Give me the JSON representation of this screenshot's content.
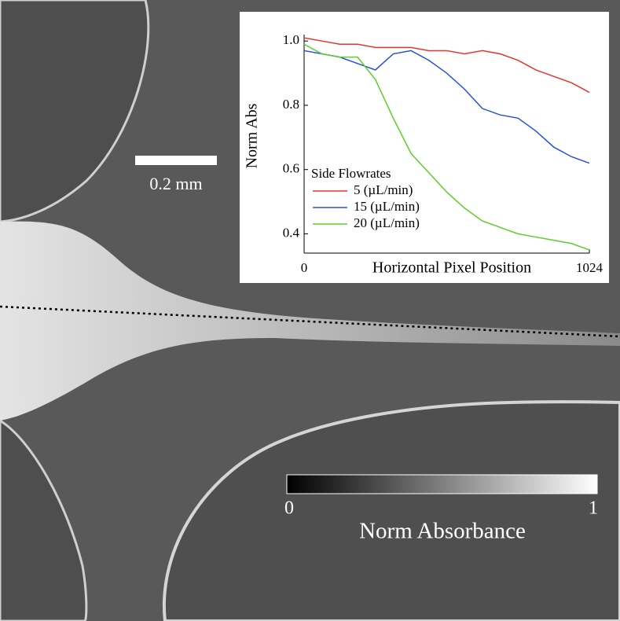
{
  "scale_bar": {
    "label": "0.2 mm"
  },
  "colorbar": {
    "label": "Norm Absorbance",
    "ticks": [
      0,
      1
    ]
  },
  "chart_data": {
    "type": "line",
    "x_label": "Horizontal Pixel Position",
    "y_label": "Norm Abs",
    "legend_title": "Side Flowrates",
    "x": [
      0,
      64,
      128,
      192,
      256,
      320,
      384,
      448,
      512,
      576,
      640,
      704,
      768,
      832,
      896,
      960,
      1024
    ],
    "series": [
      {
        "name": "5 (µL/min)",
        "color": "#e8352b",
        "values": [
          1.01,
          1.0,
          0.99,
          0.99,
          0.98,
          0.98,
          0.98,
          0.97,
          0.97,
          0.96,
          0.97,
          0.96,
          0.94,
          0.91,
          0.89,
          0.87,
          0.84
        ]
      },
      {
        "name": "15 (µL/min)",
        "color": "#2a4fe0",
        "values": [
          0.97,
          0.96,
          0.95,
          0.93,
          0.91,
          0.96,
          0.97,
          0.94,
          0.9,
          0.85,
          0.79,
          0.77,
          0.76,
          0.72,
          0.67,
          0.64,
          0.62
        ]
      },
      {
        "name": "20 (µL/min)",
        "color": "#5ccf2a",
        "values": [
          0.99,
          0.96,
          0.95,
          0.95,
          0.88,
          0.76,
          0.65,
          0.59,
          0.53,
          0.48,
          0.44,
          0.42,
          0.4,
          0.39,
          0.38,
          0.37,
          0.35
        ]
      }
    ],
    "xlim": [
      0,
      1024
    ],
    "xticks": [
      0,
      1024
    ],
    "ylim": [
      0.34,
      1.02
    ],
    "yticks": [
      0.4,
      0.6,
      0.8,
      {
        "value": 1,
        "label": "1.0"
      }
    ]
  }
}
